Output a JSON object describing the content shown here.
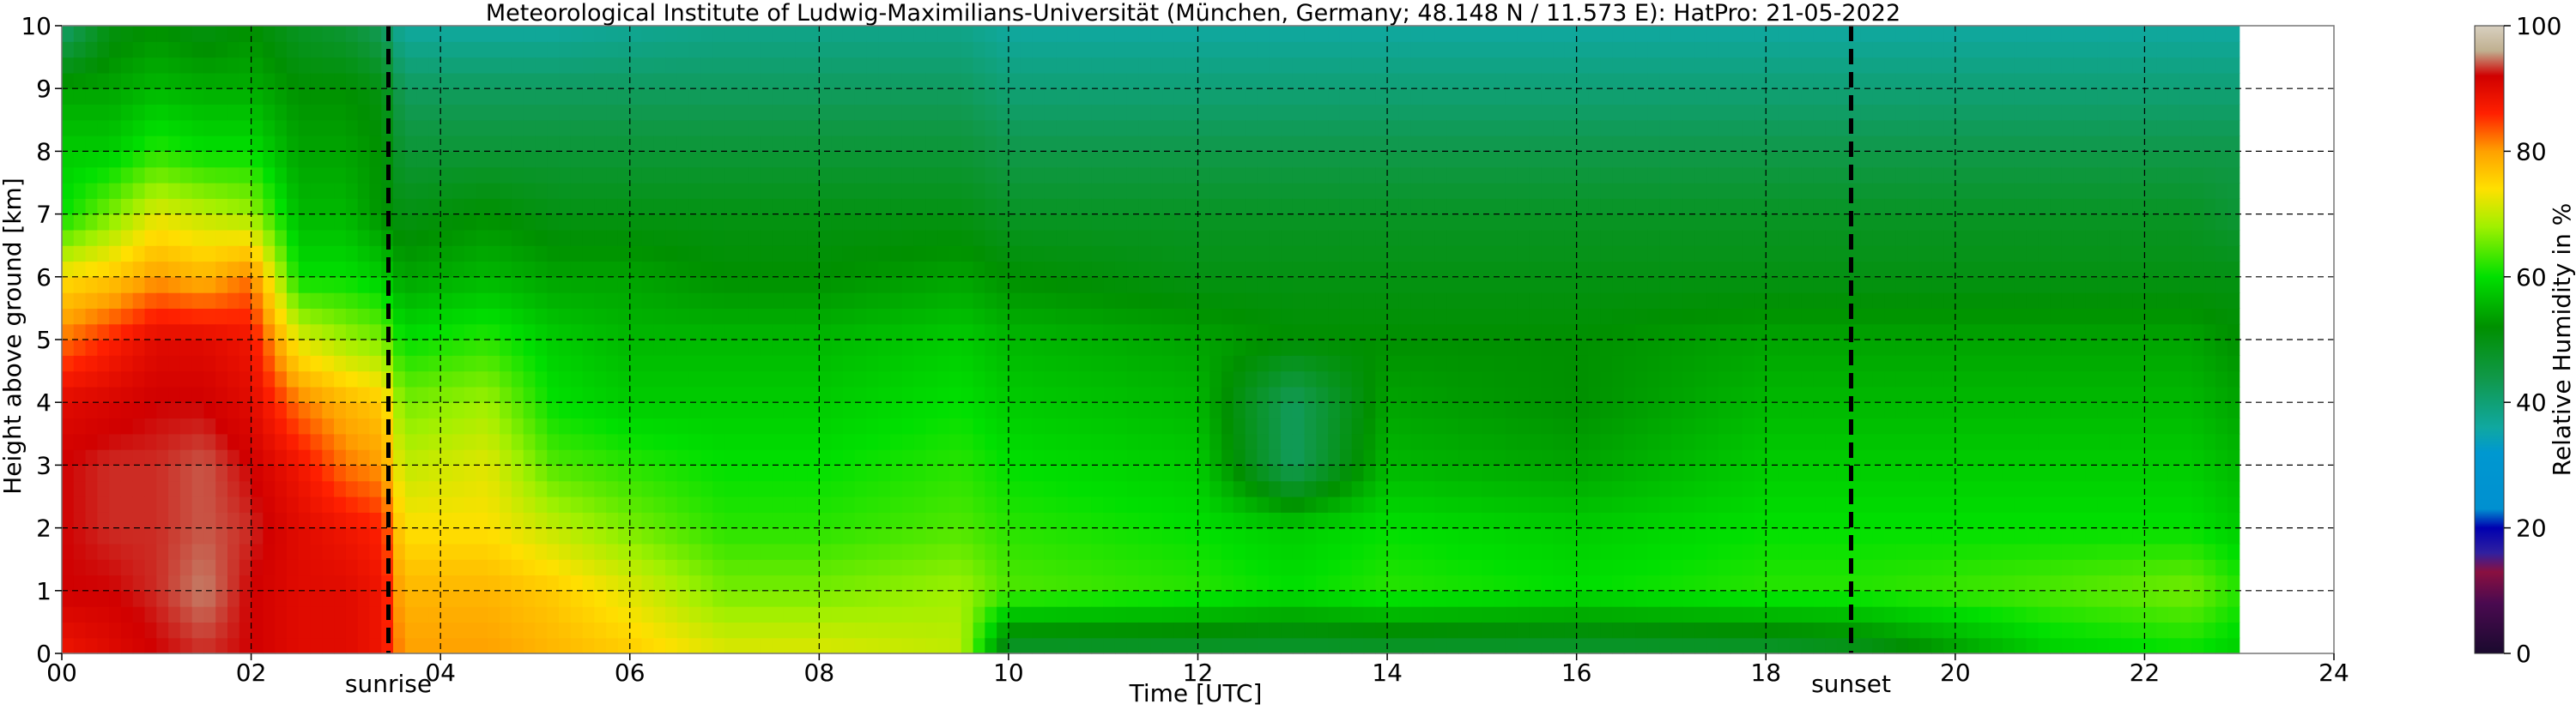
{
  "chart_data": {
    "type": "heatmap",
    "title": "Meteorological Institute of Ludwig-Maximilians-Universität (München, Germany; 48.148 N / 11.573 E):    HatPro: 21-05-2022",
    "xlabel": "Time [UTC]",
    "ylabel": "Height above ground [km]",
    "colorbar_label": "Relative Humidity in %",
    "xlim": [
      0,
      24
    ],
    "ylim": [
      0,
      10
    ],
    "clim": [
      0,
      100
    ],
    "x_ticks": [
      0,
      2,
      4,
      6,
      8,
      10,
      12,
      14,
      16,
      18,
      20,
      22,
      24
    ],
    "x_tick_labels": [
      "00",
      "02",
      "04",
      "06",
      "08",
      "10",
      "12",
      "14",
      "16",
      "18",
      "20",
      "22",
      "24"
    ],
    "y_ticks": [
      0,
      1,
      2,
      3,
      4,
      5,
      6,
      7,
      8,
      9,
      10
    ],
    "y_tick_labels": [
      "0",
      "1",
      "2",
      "3",
      "4",
      "5",
      "6",
      "7",
      "8",
      "9",
      "10"
    ],
    "colorbar_ticks": [
      0,
      20,
      40,
      60,
      80,
      100
    ],
    "colorbar_tick_labels": [
      "0",
      "20",
      "40",
      "60",
      "80",
      "100"
    ],
    "grid": true,
    "data_end_hour": 23,
    "markers": [
      {
        "label": "sunrise",
        "x": 3.45
      },
      {
        "label": "sunset",
        "x": 18.9
      }
    ],
    "colormap": [
      {
        "value": 0,
        "color": "#1a0a2e"
      },
      {
        "value": 8,
        "color": "#4a0a50"
      },
      {
        "value": 13,
        "color": "#8a1040"
      },
      {
        "value": 16,
        "color": "#3020a0"
      },
      {
        "value": 20,
        "color": "#0000b0"
      },
      {
        "value": 23,
        "color": "#0090d0"
      },
      {
        "value": 32,
        "color": "#0098d0"
      },
      {
        "value": 36,
        "color": "#10a8a0"
      },
      {
        "value": 44,
        "color": "#109848"
      },
      {
        "value": 52,
        "color": "#009000"
      },
      {
        "value": 60,
        "color": "#00e000"
      },
      {
        "value": 68,
        "color": "#a0f000"
      },
      {
        "value": 74,
        "color": "#ffe000"
      },
      {
        "value": 80,
        "color": "#ffa000"
      },
      {
        "value": 86,
        "color": "#ff2000"
      },
      {
        "value": 92,
        "color": "#d00000"
      },
      {
        "value": 96,
        "color": "#c0b090"
      },
      {
        "value": 100,
        "color": "#d8d0c0"
      }
    ],
    "profiles": [
      {
        "t": 0.0,
        "rh": [
          88,
          92,
          92,
          92,
          90,
          82,
          74,
          60,
          58,
          54,
          40
        ]
      },
      {
        "t": 0.5,
        "rh": [
          90,
          92,
          93,
          93,
          91,
          86,
          76,
          66,
          58,
          54,
          50
        ]
      },
      {
        "t": 1.0,
        "rh": [
          92,
          93,
          93,
          93,
          92,
          90,
          80,
          72,
          62,
          56,
          52
        ]
      },
      {
        "t": 1.5,
        "rh": [
          93,
          95,
          94,
          94,
          92,
          90,
          78,
          70,
          60,
          55,
          50
        ]
      },
      {
        "t": 2.0,
        "rh": [
          92,
          92,
          93,
          92,
          90,
          88,
          82,
          68,
          60,
          55,
          52
        ]
      },
      {
        "t": 2.5,
        "rh": [
          90,
          90,
          90,
          88,
          82,
          72,
          60,
          56,
          54,
          52,
          48
        ]
      },
      {
        "t": 3.0,
        "rh": [
          90,
          90,
          88,
          82,
          78,
          68,
          60,
          56,
          54,
          52,
          46
        ]
      },
      {
        "t": 3.4,
        "rh": [
          88,
          88,
          86,
          80,
          76,
          66,
          58,
          52,
          52,
          50,
          42
        ]
      },
      {
        "t": 3.6,
        "rh": [
          80,
          78,
          74,
          70,
          66,
          60,
          54,
          50,
          46,
          42,
          36
        ]
      },
      {
        "t": 4.5,
        "rh": [
          80,
          78,
          74,
          72,
          68,
          62,
          56,
          52,
          46,
          42,
          36
        ]
      },
      {
        "t": 5.2,
        "rh": [
          78,
          76,
          70,
          64,
          60,
          58,
          54,
          50,
          46,
          42,
          36
        ]
      },
      {
        "t": 6.0,
        "rh": [
          76,
          72,
          66,
          62,
          58,
          56,
          54,
          50,
          46,
          42,
          37
        ]
      },
      {
        "t": 7.0,
        "rh": [
          72,
          66,
          62,
          60,
          58,
          56,
          52,
          50,
          46,
          42,
          38
        ]
      },
      {
        "t": 8.0,
        "rh": [
          72,
          66,
          62,
          60,
          58,
          56,
          52,
          50,
          46,
          42,
          38
        ]
      },
      {
        "t": 9.5,
        "rh": [
          70,
          68,
          64,
          62,
          60,
          58,
          54,
          50,
          46,
          42,
          38
        ]
      },
      {
        "t": 10.0,
        "rh": [
          46,
          64,
          62,
          60,
          58,
          56,
          52,
          48,
          44,
          40,
          36
        ]
      },
      {
        "t": 12.0,
        "rh": [
          46,
          62,
          60,
          58,
          56,
          54,
          50,
          48,
          44,
          40,
          36
        ]
      },
      {
        "t": 13.0,
        "rh": [
          46,
          60,
          58,
          42,
          42,
          52,
          50,
          48,
          44,
          40,
          36
        ]
      },
      {
        "t": 14.0,
        "rh": [
          46,
          62,
          60,
          56,
          54,
          52,
          50,
          48,
          44,
          40,
          36
        ]
      },
      {
        "t": 16.0,
        "rh": [
          46,
          60,
          58,
          54,
          52,
          52,
          50,
          48,
          44,
          40,
          36
        ]
      },
      {
        "t": 18.0,
        "rh": [
          46,
          62,
          60,
          58,
          56,
          54,
          50,
          48,
          44,
          40,
          36
        ]
      },
      {
        "t": 19.0,
        "rh": [
          48,
          62,
          60,
          58,
          56,
          54,
          50,
          48,
          44,
          40,
          36
        ]
      },
      {
        "t": 21.0,
        "rh": [
          58,
          64,
          60,
          58,
          56,
          54,
          50,
          48,
          44,
          40,
          36
        ]
      },
      {
        "t": 22.5,
        "rh": [
          60,
          66,
          60,
          58,
          56,
          54,
          50,
          48,
          44,
          40,
          36
        ]
      },
      {
        "t": 23.0,
        "rh": [
          58,
          62,
          58,
          56,
          54,
          52,
          50,
          46,
          44,
          40,
          36
        ]
      }
    ]
  }
}
